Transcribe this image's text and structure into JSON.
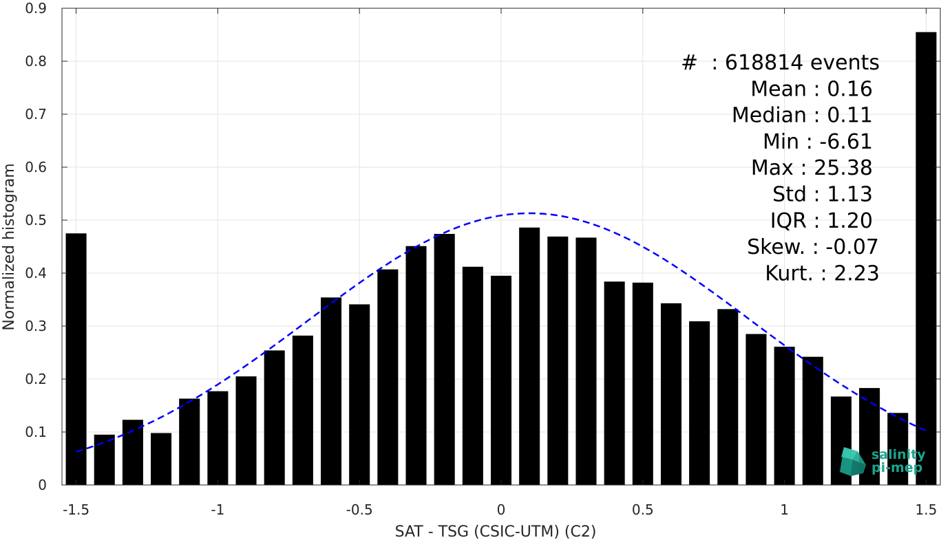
{
  "chart_data": {
    "type": "bar",
    "xlabel": "SAT - TSG (CSIC-UTM) (C2)",
    "ylabel": "Normalized histogram",
    "xlim": [
      -1.55,
      1.55
    ],
    "ylim": [
      0,
      0.9
    ],
    "xticks": [
      -1.5,
      -1,
      -0.5,
      0,
      0.5,
      1,
      1.5
    ],
    "xtick_labels": [
      "-1.5",
      "-1",
      "-0.5",
      "0",
      "0.5",
      "1",
      "1.5"
    ],
    "yticks": [
      0,
      0.1,
      0.2,
      0.3,
      0.4,
      0.5,
      0.6,
      0.7,
      0.8,
      0.9
    ],
    "ytick_labels": [
      "0",
      "0.1",
      "0.2",
      "0.3",
      "0.4",
      "0.5",
      "0.6",
      "0.7",
      "0.8",
      "0.9"
    ],
    "grid": true,
    "bar_color": "#000000",
    "bars": {
      "x": [
        -1.5,
        -1.4,
        -1.3,
        -1.2,
        -1.1,
        -1.0,
        -0.9,
        -0.8,
        -0.7,
        -0.6,
        -0.5,
        -0.4,
        -0.3,
        -0.2,
        -0.1,
        0.0,
        0.1,
        0.2,
        0.3,
        0.4,
        0.5,
        0.6,
        0.7,
        0.8,
        0.9,
        1.0,
        1.1,
        1.2,
        1.3,
        1.4,
        1.5
      ],
      "values": [
        0.475,
        0.095,
        0.123,
        0.098,
        0.163,
        0.177,
        0.205,
        0.254,
        0.282,
        0.354,
        0.341,
        0.407,
        0.451,
        0.474,
        0.412,
        0.395,
        0.486,
        0.469,
        0.467,
        0.384,
        0.382,
        0.343,
        0.309,
        0.332,
        0.285,
        0.261,
        0.242,
        0.167,
        0.183,
        0.136,
        0.855
      ]
    },
    "fit": {
      "style": "dashed",
      "color": "#0000ff",
      "distribution": "normal",
      "mean": 0.1,
      "std": 0.78,
      "peak": 0.513,
      "x_range": [
        -1.5,
        1.5
      ]
    },
    "annotations": [
      "#  : 618814 events",
      "Mean : 0.16",
      "Median : 0.11",
      "Min : -6.61",
      "Max : 25.38",
      "Std : 1.13",
      "IQR : 1.20",
      "Skew. : -0.07",
      "Kurt. : 2.23"
    ]
  },
  "logo": {
    "line1": "salinity",
    "line2": "pi-mep",
    "color": "#1aa58f"
  }
}
